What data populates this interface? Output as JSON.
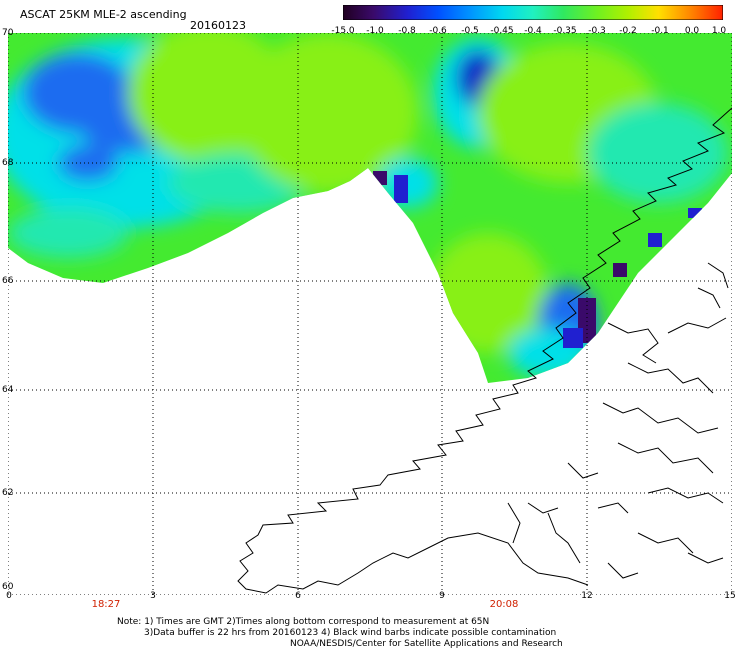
{
  "header": {
    "title": "ASCAT 25KM MLE-2 ascending",
    "date": "20160123"
  },
  "colorbar": {
    "labels": [
      "-15.0",
      "-1.0",
      "-0.8",
      "-0.6",
      "-0.5",
      "-0.45",
      "-0.4",
      "-0.35",
      "-0.3",
      "-0.2",
      "-0.1",
      "0.0",
      "1.0"
    ],
    "colors": [
      "#200020",
      "#3a0a6a",
      "#2020d0",
      "#0050ff",
      "#0090ff",
      "#00d8f0",
      "#20f0c0",
      "#30e860",
      "#70f020",
      "#b0f000",
      "#ffe000",
      "#ff8000",
      "#ff2000"
    ]
  },
  "map": {
    "lat_labels": [
      "70",
      "68",
      "66",
      "64",
      "62",
      "60"
    ],
    "lon_labels": [
      "0",
      "3",
      "6",
      "9",
      "12",
      "15"
    ],
    "time_labels": [
      "18:27",
      "20:08"
    ],
    "colors": {
      "deep_blue": "#0a20c8",
      "blue": "#1e6cf0",
      "cyan": "#00e0e8",
      "teal": "#20e8b0",
      "green": "#44ea30",
      "lime": "#88f018",
      "purple": "#3a0a6a"
    }
  },
  "footer": {
    "note_line1": "Note: 1) Times are GMT 2)Times along bottom correspond to measurement at 65N",
    "note_line2": "3)Data buffer is 22 hrs from 20160123 4) Black wind barbs indicate possible contamination",
    "note_line3": "NOAA/NESDIS/Center for Satellite Applications and Research"
  }
}
